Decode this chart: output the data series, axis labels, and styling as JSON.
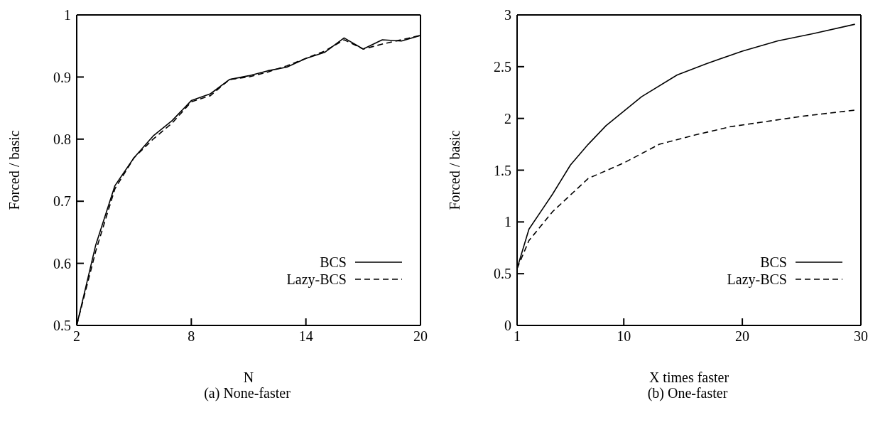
{
  "chart_data": [
    {
      "type": "line",
      "title": "(a) None-faster",
      "xlabel": "N",
      "ylabel": "Forced / basic",
      "xlim": [
        2,
        20
      ],
      "xticks": [
        2,
        8,
        14,
        20
      ],
      "ylim": [
        0.5,
        1
      ],
      "yticks": [
        0.5,
        0.6,
        0.7,
        0.8,
        0.9,
        1
      ],
      "legend": "bottom right",
      "x": [
        2,
        3,
        4,
        5,
        6,
        7,
        8,
        9,
        10,
        11,
        12,
        13,
        14,
        15,
        16,
        17,
        18,
        19,
        20
      ],
      "series": [
        {
          "name": "BCS",
          "color": "#000000",
          "line_style": "solid",
          "values": [
            0.5,
            0.63,
            0.725,
            0.77,
            0.805,
            0.83,
            0.862,
            0.873,
            0.896,
            0.902,
            0.91,
            0.916,
            0.93,
            0.94,
            0.963,
            0.945,
            0.96,
            0.958,
            0.967
          ]
        },
        {
          "name": "Lazy-BCS",
          "color": "#000000",
          "line_style": "dashed",
          "values": [
            0.5,
            0.62,
            0.72,
            0.77,
            0.8,
            0.826,
            0.86,
            0.87,
            0.896,
            0.9,
            0.908,
            0.918,
            0.93,
            0.942,
            0.96,
            0.945,
            0.953,
            0.96,
            0.967
          ]
        }
      ]
    },
    {
      "type": "line",
      "title": "(b) One-faster",
      "xlabel": "X times faster",
      "ylabel": "Forced / basic",
      "xlim": [
        1,
        30
      ],
      "xticks": [
        1,
        10,
        20,
        30
      ],
      "ylim": [
        0,
        3
      ],
      "yticks": [
        0,
        0.5,
        1,
        1.5,
        2,
        2.5,
        3
      ],
      "legend": "bottom right",
      "series": [
        {
          "name": "BCS",
          "color": "#000000",
          "line_style": "solid",
          "x": [
            1,
            2,
            4,
            5.5,
            7,
            8.5,
            11.5,
            14.5,
            17,
            20,
            23,
            26,
            29.5
          ],
          "values": [
            0.55,
            0.93,
            1.27,
            1.55,
            1.75,
            1.93,
            2.21,
            2.42,
            2.53,
            2.65,
            2.75,
            2.82,
            2.91
          ]
        },
        {
          "name": "Lazy-BCS",
          "color": "#000000",
          "line_style": "dashed",
          "x": [
            1,
            2,
            4,
            7,
            10,
            13,
            16,
            19,
            22,
            25,
            29.5
          ],
          "values": [
            0.55,
            0.82,
            1.1,
            1.42,
            1.57,
            1.75,
            1.84,
            1.92,
            1.97,
            2.02,
            2.08
          ]
        }
      ]
    }
  ]
}
